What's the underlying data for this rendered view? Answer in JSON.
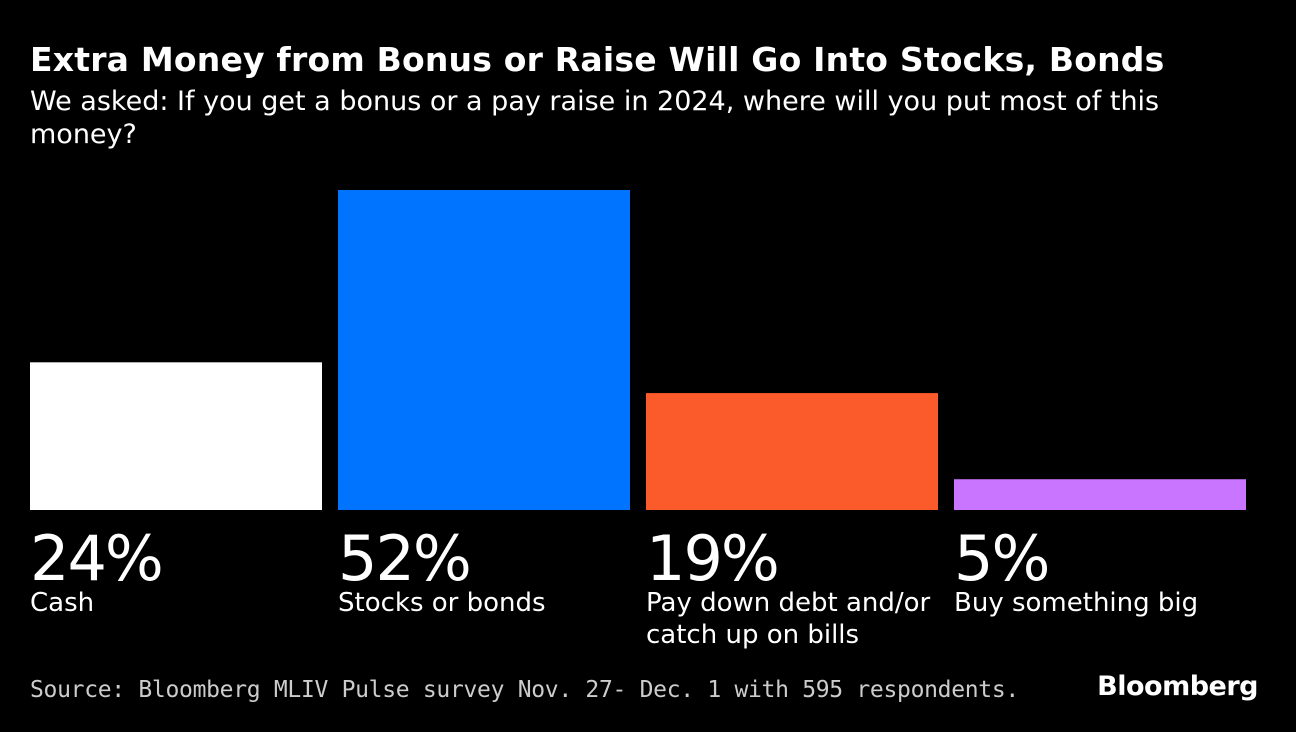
{
  "header": {
    "title": "Extra Money from Bonus or Raise Will Go Into Stocks, Bonds",
    "subtitle": "We asked: If you get a bonus or a pay raise in 2024, where will you put most of this money?"
  },
  "chart_data": {
    "type": "bar",
    "title": "Extra Money from Bonus or Raise Will Go Into Stocks, Bonds",
    "categories": [
      "Cash",
      "Stocks or bonds",
      "Pay down debt and/or catch up on bills",
      "Buy something big"
    ],
    "category_lines": [
      [
        "Cash"
      ],
      [
        "Stocks or bonds"
      ],
      [
        "Pay down debt and/or",
        "catch up on bills"
      ],
      [
        "Buy something big"
      ]
    ],
    "values": [
      24,
      52,
      19,
      5
    ],
    "value_labels": [
      "24%",
      "52%",
      "19%",
      "5%"
    ],
    "colors": [
      "#ffffff",
      "#0073ff",
      "#fb5a2a",
      "#c975ff"
    ],
    "unit": "%",
    "ylim": [
      0,
      52
    ],
    "grid": false,
    "xlabel": "",
    "ylabel": ""
  },
  "footer": {
    "source": "Source: Bloomberg MLIV Pulse survey Nov. 27- Dec. 1 with 595 respondents.",
    "logo": "Bloomberg"
  }
}
